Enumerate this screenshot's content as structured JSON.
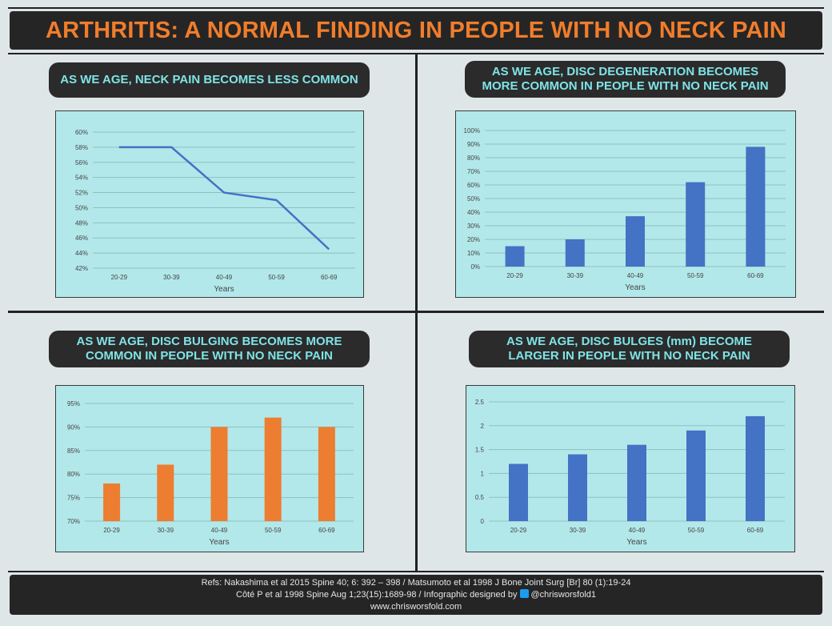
{
  "title": "ARTHRITIS: A NORMAL FINDING IN PEOPLE WITH NO NECK PAIN",
  "footer": {
    "line1": "Refs: Nakashima et al 2015 Spine 40; 6: 392 – 398 / Matsumoto et al 1998 J Bone Joint Surg [Br] 80 (1):19-24",
    "line2_pre": "Côté P et al 1998 Spine Aug 1;23(15):1689-98 / Infographic designed by",
    "handle": "@chrisworsfold1",
    "url": "www.chrisworsfold.com"
  },
  "colors": {
    "title_orange": "#f07d2c",
    "panel_text": "#7fe3e6",
    "blue": "#4472c4",
    "orange": "#ed7d31",
    "plot_bg": "#b3e8ea"
  },
  "panels": [
    {
      "heading_line1": "AS WE AGE, NECK PAIN BECOMES LESS COMMON",
      "heading_line2": ""
    },
    {
      "heading_line1": "AS WE AGE, DISC DEGENERATION BECOMES",
      "heading_line2": "MORE COMMON IN PEOPLE WITH NO NECK PAIN"
    },
    {
      "heading_line1": "AS WE AGE, DISC BULGING BECOMES MORE",
      "heading_line2": "COMMON IN PEOPLE WITH NO NECK PAIN"
    },
    {
      "heading_line1": "AS WE AGE, DISC BULGES (mm) BECOME",
      "heading_line2": "LARGER IN PEOPLE WITH NO NECK PAIN"
    }
  ],
  "chart_data": [
    {
      "type": "line",
      "categories": [
        "20-29",
        "30-39",
        "40-49",
        "50-59",
        "60-69"
      ],
      "values": [
        58,
        58,
        52,
        51,
        44.5
      ],
      "xlabel": "Years",
      "ylim": [
        42,
        60
      ],
      "yticks": [
        42,
        44,
        46,
        48,
        50,
        52,
        54,
        56,
        58,
        60
      ],
      "tick_suffix": "%",
      "color": "#4472c4",
      "grid": true
    },
    {
      "type": "bar",
      "categories": [
        "20-29",
        "30-39",
        "40-49",
        "50-59",
        "60-69"
      ],
      "values": [
        15,
        20,
        37,
        62,
        88
      ],
      "xlabel": "Years",
      "ylim": [
        0,
        100
      ],
      "yticks": [
        0,
        10,
        20,
        30,
        40,
        50,
        60,
        70,
        80,
        90,
        100
      ],
      "tick_suffix": "%",
      "color": "#4472c4",
      "grid": true
    },
    {
      "type": "bar",
      "categories": [
        "20-29",
        "30-39",
        "40-49",
        "50-59",
        "60-69"
      ],
      "values": [
        78,
        82,
        90,
        92,
        90
      ],
      "xlabel": "Years",
      "ylim": [
        70,
        95
      ],
      "yticks": [
        70,
        75,
        80,
        85,
        90,
        95
      ],
      "tick_suffix": "%",
      "color": "#ed7d31",
      "grid": true
    },
    {
      "type": "bar",
      "categories": [
        "20-29",
        "30-39",
        "40-49",
        "50-59",
        "60-69"
      ],
      "values": [
        1.2,
        1.4,
        1.6,
        1.9,
        2.2
      ],
      "xlabel": "Years",
      "ylim": [
        0,
        2.5
      ],
      "yticks": [
        0,
        0.5,
        1,
        1.5,
        2,
        2.5
      ],
      "tick_suffix": "",
      "color": "#4472c4",
      "grid": true
    }
  ]
}
